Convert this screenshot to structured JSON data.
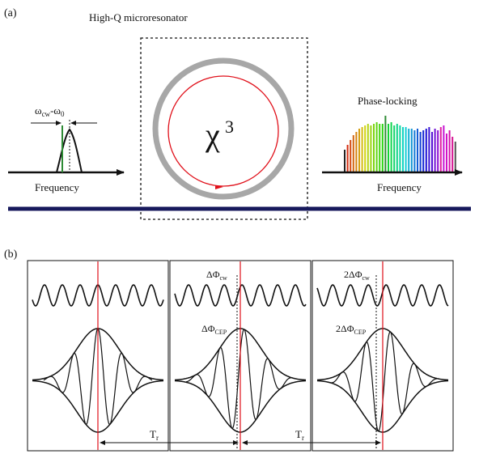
{
  "panel_a": {
    "tag": "(a)",
    "resonator_title": "High-Q microresonator",
    "chi_symbol": "χ",
    "chi_exponent": "3",
    "detuning_label": {
      "w1": "ω",
      "s1": "cw",
      "dash": "-",
      "w2": "ω",
      "s2": "0"
    },
    "left_axis_label": "Frequency",
    "right_axis_label": "Frequency",
    "right_title": "Phase-locking",
    "colors": {
      "ring": "#a7a7a7",
      "circulation": "#e0101a",
      "waveguide": "#17195c",
      "pump_line": "#2e8b35"
    }
  },
  "panel_b": {
    "tag": "(b)",
    "frames": [
      {
        "phase_top": "",
        "phase_bottom": ""
      },
      {
        "phase_top": {
          "pre": "ΔΦ",
          "sub": "cw"
        },
        "phase_bottom": {
          "pre": "ΔΦ",
          "sub": "CEP"
        }
      },
      {
        "phase_top": {
          "pre": "2ΔΦ",
          "sub": "cw"
        },
        "phase_bottom": {
          "pre": "2ΔΦ",
          "sub": "CEP"
        }
      }
    ],
    "period_label": {
      "main": "T",
      "sub": "r"
    },
    "colors": {
      "marker": "#e0101a"
    }
  }
}
